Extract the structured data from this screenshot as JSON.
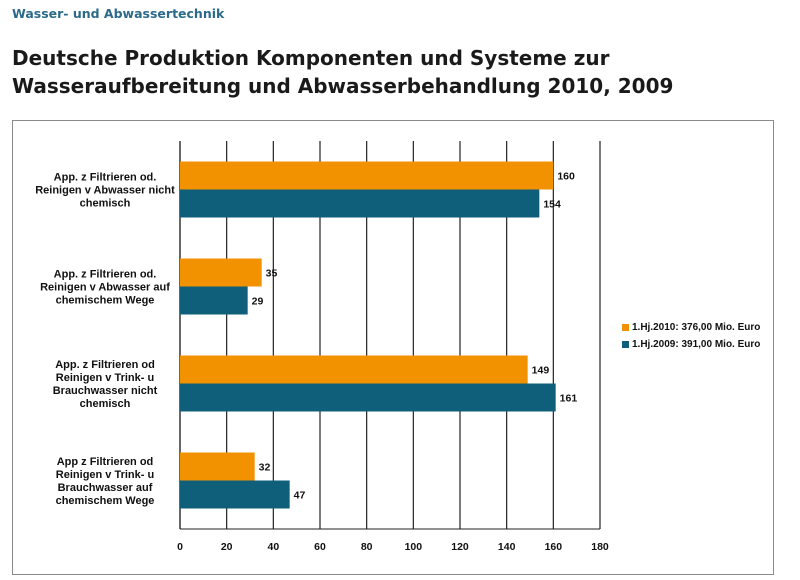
{
  "header": {
    "section": "Wasser- und Abwassertechnik",
    "title_line1": "Deutsche Produktion Komponenten und Systeme zur",
    "title_line2": "Wasseraufbereitung und Abwasserbehandlung 2010, 2009"
  },
  "legend": {
    "items": [
      {
        "label": "1.Hj.2010: 376,00 Mio. Euro",
        "color": "#f39200"
      },
      {
        "label": "1.Hj.2009: 391,00 Mio. Euro",
        "color": "#0f5f7a"
      }
    ]
  },
  "chart_data": {
    "type": "bar",
    "orientation": "horizontal",
    "categories": [
      [
        "App. z Filtrieren od.",
        "Reinigen v Abwasser nicht",
        "chemisch"
      ],
      [
        "App. z Filtrieren od.",
        "Reinigen v Abwasser auf",
        "chemischem Wege"
      ],
      [
        "App. z Filtrieren od",
        "Reinigen v Trink- u",
        "Brauchwasser nicht",
        "chemisch"
      ],
      [
        "App z Filtrieren od",
        "Reinigen v Trink- u",
        "Brauchwasser auf",
        "chemischem Wege"
      ]
    ],
    "series": [
      {
        "name": "1.Hj.2010: 376,00 Mio. Euro",
        "color": "#f39200",
        "values": [
          160,
          35,
          149,
          32
        ]
      },
      {
        "name": "1.Hj.2009: 391,00 Mio. Euro",
        "color": "#0f5f7a",
        "values": [
          154,
          29,
          161,
          47
        ]
      }
    ],
    "xlim": [
      0,
      180
    ],
    "xticks": [
      0,
      20,
      40,
      60,
      80,
      100,
      120,
      140,
      160,
      180
    ],
    "grid": "vertical",
    "legend_position": "right"
  }
}
